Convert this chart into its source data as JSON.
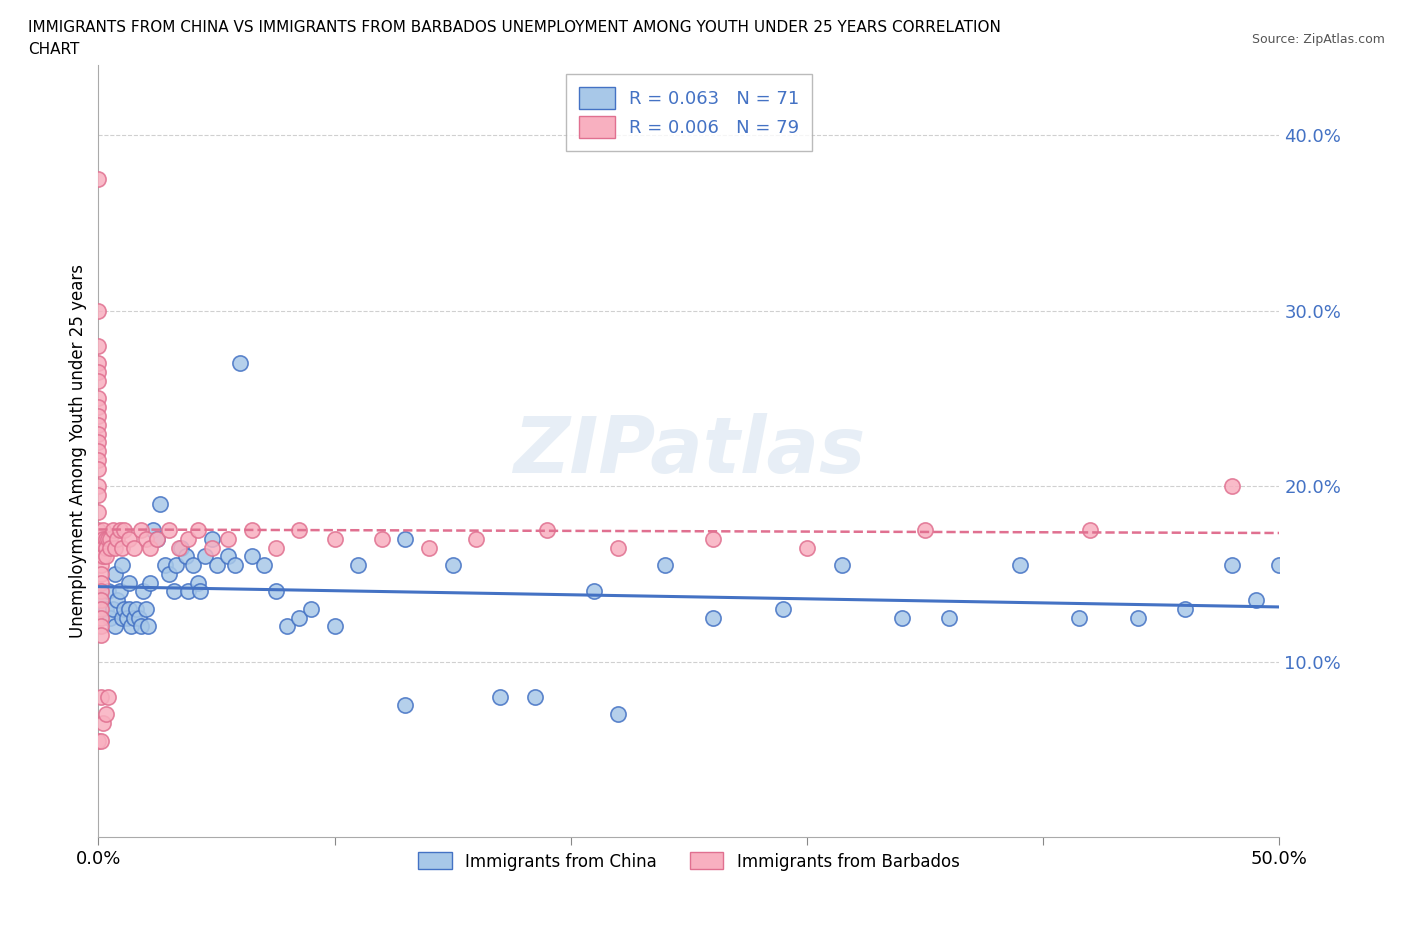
{
  "title_line1": "IMMIGRANTS FROM CHINA VS IMMIGRANTS FROM BARBADOS UNEMPLOYMENT AMONG YOUTH UNDER 25 YEARS CORRELATION",
  "title_line2": "CHART",
  "source": "Source: ZipAtlas.com",
  "ylabel": "Unemployment Among Youth under 25 years",
  "xlim": [
    0.0,
    0.5
  ],
  "ylim": [
    0.0,
    0.44
  ],
  "yticks": [
    0.1,
    0.2,
    0.3,
    0.4
  ],
  "xticks": [
    0.0,
    0.1,
    0.2,
    0.3,
    0.4,
    0.5
  ],
  "china_R": 0.063,
  "china_N": 71,
  "barbados_R": 0.006,
  "barbados_N": 79,
  "china_color": "#a8c8e8",
  "barbados_color": "#f8b0c0",
  "china_edge_color": "#4472c4",
  "barbados_edge_color": "#e07090",
  "china_line_color": "#4472c4",
  "barbados_line_color": "#e07090",
  "grid_color": "#d0d0d0",
  "tick_label_color": "#4472c4",
  "background_color": "#ffffff",
  "china_x": [
    0.001,
    0.003,
    0.004,
    0.005,
    0.006,
    0.007,
    0.007,
    0.008,
    0.009,
    0.01,
    0.01,
    0.011,
    0.012,
    0.013,
    0.013,
    0.014,
    0.015,
    0.016,
    0.017,
    0.018,
    0.019,
    0.02,
    0.021,
    0.022,
    0.023,
    0.025,
    0.026,
    0.028,
    0.03,
    0.032,
    0.033,
    0.035,
    0.037,
    0.038,
    0.04,
    0.042,
    0.043,
    0.045,
    0.048,
    0.05,
    0.055,
    0.058,
    0.06,
    0.065,
    0.07,
    0.075,
    0.08,
    0.085,
    0.09,
    0.1,
    0.11,
    0.13,
    0.15,
    0.17,
    0.185,
    0.21,
    0.24,
    0.26,
    0.29,
    0.315,
    0.34,
    0.36,
    0.39,
    0.415,
    0.44,
    0.46,
    0.48,
    0.49,
    0.5,
    0.22,
    0.13
  ],
  "china_y": [
    0.135,
    0.13,
    0.14,
    0.125,
    0.13,
    0.15,
    0.12,
    0.135,
    0.14,
    0.125,
    0.155,
    0.13,
    0.125,
    0.145,
    0.13,
    0.12,
    0.125,
    0.13,
    0.125,
    0.12,
    0.14,
    0.13,
    0.12,
    0.145,
    0.175,
    0.17,
    0.19,
    0.155,
    0.15,
    0.14,
    0.155,
    0.165,
    0.16,
    0.14,
    0.155,
    0.145,
    0.14,
    0.16,
    0.17,
    0.155,
    0.16,
    0.155,
    0.27,
    0.16,
    0.155,
    0.14,
    0.12,
    0.125,
    0.13,
    0.12,
    0.155,
    0.17,
    0.155,
    0.08,
    0.08,
    0.14,
    0.155,
    0.125,
    0.13,
    0.155,
    0.125,
    0.125,
    0.155,
    0.125,
    0.125,
    0.13,
    0.155,
    0.135,
    0.155,
    0.07,
    0.075
  ],
  "barbados_x": [
    0.0,
    0.0,
    0.0,
    0.0,
    0.0,
    0.0,
    0.0,
    0.0,
    0.0,
    0.0,
    0.0,
    0.0,
    0.0,
    0.0,
    0.0,
    0.0,
    0.0,
    0.0,
    0.0,
    0.0,
    0.001,
    0.001,
    0.001,
    0.001,
    0.001,
    0.001,
    0.001,
    0.001,
    0.001,
    0.001,
    0.001,
    0.001,
    0.002,
    0.002,
    0.002,
    0.002,
    0.002,
    0.003,
    0.003,
    0.003,
    0.003,
    0.004,
    0.004,
    0.005,
    0.005,
    0.006,
    0.007,
    0.008,
    0.009,
    0.01,
    0.011,
    0.013,
    0.015,
    0.018,
    0.02,
    0.022,
    0.025,
    0.03,
    0.034,
    0.038,
    0.042,
    0.048,
    0.055,
    0.065,
    0.075,
    0.085,
    0.1,
    0.12,
    0.14,
    0.16,
    0.19,
    0.22,
    0.26,
    0.3,
    0.35,
    0.42,
    0.48,
    0.0,
    0.001
  ],
  "barbados_y": [
    0.375,
    0.3,
    0.28,
    0.27,
    0.265,
    0.26,
    0.25,
    0.245,
    0.24,
    0.235,
    0.23,
    0.225,
    0.22,
    0.215,
    0.21,
    0.2,
    0.195,
    0.185,
    0.175,
    0.17,
    0.165,
    0.16,
    0.155,
    0.15,
    0.145,
    0.14,
    0.135,
    0.13,
    0.125,
    0.12,
    0.115,
    0.08,
    0.175,
    0.17,
    0.165,
    0.16,
    0.065,
    0.17,
    0.165,
    0.16,
    0.07,
    0.17,
    0.08,
    0.17,
    0.165,
    0.175,
    0.165,
    0.17,
    0.175,
    0.165,
    0.175,
    0.17,
    0.165,
    0.175,
    0.17,
    0.165,
    0.17,
    0.175,
    0.165,
    0.17,
    0.175,
    0.165,
    0.17,
    0.175,
    0.165,
    0.175,
    0.17,
    0.17,
    0.165,
    0.17,
    0.175,
    0.165,
    0.17,
    0.165,
    0.175,
    0.175,
    0.2,
    0.055,
    0.055
  ]
}
